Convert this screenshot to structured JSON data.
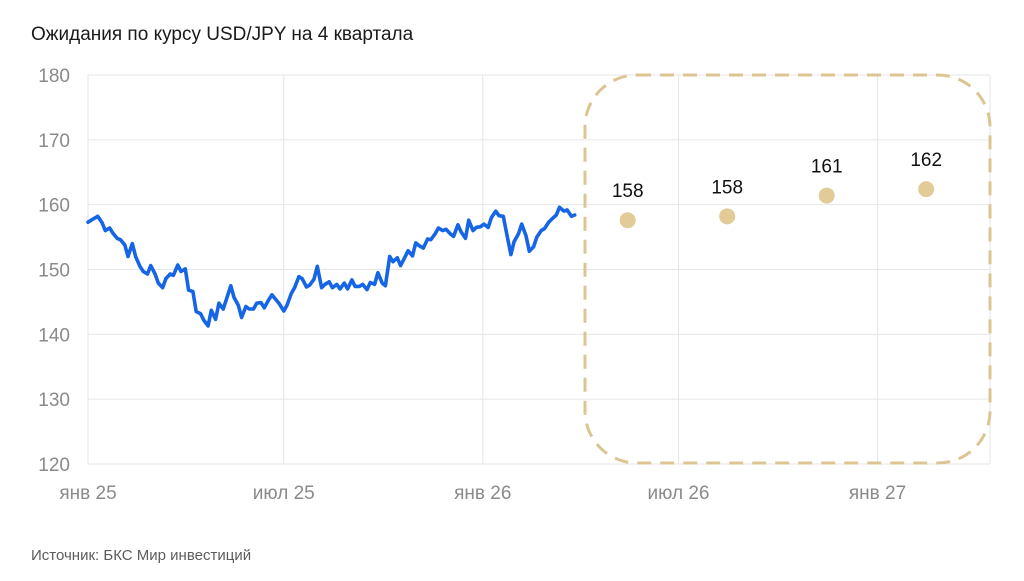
{
  "title": "Ожидания по курсу USD/JPY на 4 квартала",
  "source": "Источник: БКС Мир инвестиций",
  "colors": {
    "line": "#1565e6",
    "forecast": "#e2cb97",
    "box": "#dcc593",
    "grid": "#e6e6e6"
  },
  "chart_data": {
    "type": "line",
    "title": "Ожидания по курсу USD/JPY на 4 квартала",
    "ylim": [
      120,
      180
    ],
    "yticks": [
      180,
      170,
      160,
      150,
      140,
      130,
      120
    ],
    "x_range": [
      "2025-01-01",
      "2027-04-15"
    ],
    "xticks": [
      {
        "date": "2025-01-01",
        "label": "янв 25"
      },
      {
        "date": "2025-07-01",
        "label": "июл 25"
      },
      {
        "date": "2026-01-01",
        "label": "янв 26"
      },
      {
        "date": "2026-07-01",
        "label": "июл 26"
      },
      {
        "date": "2027-01-01",
        "label": "янв 27"
      }
    ],
    "grid": true,
    "series": [
      {
        "kind": "line",
        "points": [
          [
            "2025-01-01",
            157.3
          ],
          [
            "2025-01-06",
            157.8
          ],
          [
            "2025-01-10",
            158.2
          ],
          [
            "2025-01-14",
            157.2
          ],
          [
            "2025-01-17",
            156.0
          ],
          [
            "2025-01-21",
            156.4
          ],
          [
            "2025-01-24",
            155.6
          ],
          [
            "2025-01-28",
            154.8
          ],
          [
            "2025-01-31",
            154.6
          ],
          [
            "2025-02-04",
            153.8
          ],
          [
            "2025-02-07",
            152.0
          ],
          [
            "2025-02-11",
            154.0
          ],
          [
            "2025-02-14",
            152.0
          ],
          [
            "2025-02-18",
            150.5
          ],
          [
            "2025-02-21",
            149.7
          ],
          [
            "2025-02-25",
            149.3
          ],
          [
            "2025-02-28",
            150.6
          ],
          [
            "2025-03-04",
            149.3
          ],
          [
            "2025-03-07",
            147.9
          ],
          [
            "2025-03-11",
            147.2
          ],
          [
            "2025-03-14",
            148.6
          ],
          [
            "2025-03-18",
            149.3
          ],
          [
            "2025-03-21",
            149.1
          ],
          [
            "2025-03-25",
            150.7
          ],
          [
            "2025-03-28",
            149.7
          ],
          [
            "2025-04-01",
            150.1
          ],
          [
            "2025-04-04",
            146.8
          ],
          [
            "2025-04-08",
            146.6
          ],
          [
            "2025-04-11",
            143.5
          ],
          [
            "2025-04-15",
            143.2
          ],
          [
            "2025-04-18",
            142.2
          ],
          [
            "2025-04-22",
            141.3
          ],
          [
            "2025-04-25",
            143.7
          ],
          [
            "2025-04-29",
            142.3
          ],
          [
            "2025-05-02",
            144.8
          ],
          [
            "2025-05-06",
            143.9
          ],
          [
            "2025-05-09",
            145.4
          ],
          [
            "2025-05-13",
            147.5
          ],
          [
            "2025-05-16",
            145.7
          ],
          [
            "2025-05-20",
            144.5
          ],
          [
            "2025-05-23",
            142.6
          ],
          [
            "2025-05-27",
            144.3
          ],
          [
            "2025-05-30",
            143.9
          ],
          [
            "2025-06-03",
            143.9
          ],
          [
            "2025-06-06",
            144.8
          ],
          [
            "2025-06-10",
            144.9
          ],
          [
            "2025-06-13",
            144.1
          ],
          [
            "2025-06-17",
            145.3
          ],
          [
            "2025-06-20",
            146.1
          ],
          [
            "2025-06-24",
            145.3
          ],
          [
            "2025-06-27",
            144.7
          ],
          [
            "2025-07-01",
            143.6
          ],
          [
            "2025-07-04",
            144.5
          ],
          [
            "2025-07-08",
            146.3
          ],
          [
            "2025-07-11",
            147.2
          ],
          [
            "2025-07-15",
            148.9
          ],
          [
            "2025-07-18",
            148.6
          ],
          [
            "2025-07-22",
            147.3
          ],
          [
            "2025-07-25",
            147.6
          ],
          [
            "2025-07-29",
            148.5
          ],
          [
            "2025-08-01",
            150.5
          ],
          [
            "2025-08-05",
            147.2
          ],
          [
            "2025-08-08",
            147.7
          ],
          [
            "2025-08-12",
            148.1
          ],
          [
            "2025-08-15",
            147.2
          ],
          [
            "2025-08-19",
            147.7
          ],
          [
            "2025-08-22",
            147.0
          ],
          [
            "2025-08-26",
            147.9
          ],
          [
            "2025-08-29",
            147.0
          ],
          [
            "2025-09-02",
            148.4
          ],
          [
            "2025-09-05",
            147.4
          ],
          [
            "2025-09-09",
            147.4
          ],
          [
            "2025-09-12",
            147.7
          ],
          [
            "2025-09-16",
            146.9
          ],
          [
            "2025-09-19",
            148.0
          ],
          [
            "2025-09-23",
            147.7
          ],
          [
            "2025-09-26",
            149.5
          ],
          [
            "2025-09-30",
            147.9
          ],
          [
            "2025-10-03",
            147.5
          ],
          [
            "2025-10-07",
            152.0
          ],
          [
            "2025-10-10",
            151.2
          ],
          [
            "2025-10-14",
            151.8
          ],
          [
            "2025-10-17",
            150.6
          ],
          [
            "2025-10-21",
            151.9
          ],
          [
            "2025-10-24",
            152.9
          ],
          [
            "2025-10-28",
            152.1
          ],
          [
            "2025-10-31",
            154.1
          ],
          [
            "2025-11-04",
            153.6
          ],
          [
            "2025-11-07",
            153.3
          ],
          [
            "2025-11-11",
            154.7
          ],
          [
            "2025-11-14",
            154.6
          ],
          [
            "2025-11-18",
            155.5
          ],
          [
            "2025-11-21",
            156.4
          ],
          [
            "2025-11-25",
            156.0
          ],
          [
            "2025-11-28",
            156.2
          ],
          [
            "2025-12-02",
            155.5
          ],
          [
            "2025-12-05",
            155.1
          ],
          [
            "2025-12-09",
            156.9
          ],
          [
            "2025-12-12",
            155.8
          ],
          [
            "2025-12-16",
            154.8
          ],
          [
            "2025-12-19",
            157.6
          ],
          [
            "2025-12-23",
            156.0
          ],
          [
            "2025-12-26",
            156.5
          ],
          [
            "2025-12-30",
            156.6
          ],
          [
            "2026-01-02",
            157.0
          ],
          [
            "2026-01-06",
            156.5
          ],
          [
            "2026-01-09",
            158.0
          ],
          [
            "2026-01-13",
            159.0
          ],
          [
            "2026-01-16",
            158.3
          ],
          [
            "2026-01-20",
            158.2
          ],
          [
            "2026-01-23",
            155.6
          ],
          [
            "2026-01-27",
            152.3
          ],
          [
            "2026-01-30",
            154.3
          ],
          [
            "2026-02-03",
            155.5
          ],
          [
            "2026-02-06",
            157.0
          ],
          [
            "2026-02-10",
            155.2
          ],
          [
            "2026-02-13",
            152.8
          ],
          [
            "2026-02-17",
            153.5
          ],
          [
            "2026-02-20",
            155.0
          ],
          [
            "2026-02-24",
            156.0
          ],
          [
            "2026-02-27",
            156.3
          ],
          [
            "2026-03-03",
            157.3
          ],
          [
            "2026-03-06",
            157.8
          ],
          [
            "2026-03-10",
            158.4
          ],
          [
            "2026-03-13",
            159.6
          ],
          [
            "2026-03-17",
            159.0
          ],
          [
            "2026-03-20",
            159.2
          ],
          [
            "2026-03-24",
            158.2
          ],
          [
            "2026-03-27",
            158.4
          ]
        ]
      },
      {
        "kind": "forecast",
        "points": [
          {
            "date": "2026-05-15",
            "value": 157.6,
            "label": "158"
          },
          {
            "date": "2026-08-15",
            "value": 158.2,
            "label": "158"
          },
          {
            "date": "2026-11-15",
            "value": 161.4,
            "label": "161"
          },
          {
            "date": "2027-02-15",
            "value": 162.4,
            "label": "162"
          }
        ]
      }
    ]
  }
}
